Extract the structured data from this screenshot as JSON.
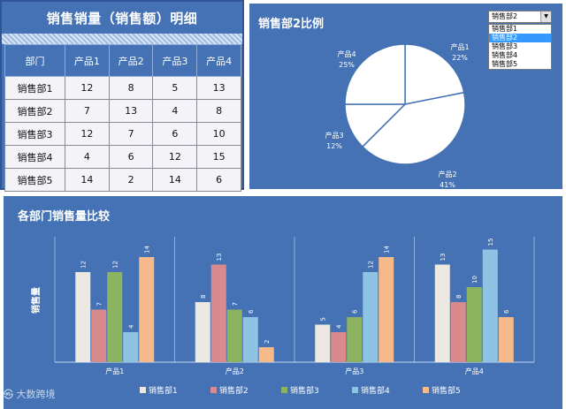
{
  "table": {
    "title": "销售销量（销售额）明细",
    "headers": [
      "部门",
      "产品1",
      "产品2",
      "产品3",
      "产品4"
    ],
    "rows": [
      [
        "销售部1",
        "12",
        "8",
        "5",
        "13"
      ],
      [
        "销售部2",
        "7",
        "13",
        "4",
        "8"
      ],
      [
        "销售部3",
        "12",
        "7",
        "6",
        "10"
      ],
      [
        "销售部4",
        "4",
        "6",
        "12",
        "15"
      ],
      [
        "销售部5",
        "14",
        "2",
        "14",
        "6"
      ]
    ]
  },
  "dropdown": {
    "selected": "销售部2",
    "options": [
      "销售部1",
      "销售部2",
      "销售部3",
      "销售部4",
      "销售部5"
    ],
    "highlighted_index": 1
  },
  "watermark": "大数跨境",
  "colors": {
    "panel": "#4472b4",
    "series": [
      "#ece9e2",
      "#d98a8d",
      "#8cb460",
      "#8fc3e3",
      "#f6b98a"
    ]
  },
  "chart_data": [
    {
      "type": "pie",
      "title": "销售部2比例",
      "slices": [
        {
          "label": "产品1",
          "value": 7,
          "percent": "22%"
        },
        {
          "label": "产品2",
          "value": 13,
          "percent": "41%"
        },
        {
          "label": "产品3",
          "value": 4,
          "percent": "12%"
        },
        {
          "label": "产品4",
          "value": 8,
          "percent": "25%"
        }
      ],
      "color": "#ffffff"
    },
    {
      "type": "bar",
      "title": "各部门销售量比较",
      "ylabel": "销售量",
      "categories": [
        "产品1",
        "产品2",
        "产品3",
        "产品4"
      ],
      "series": [
        {
          "name": "销售部1",
          "values": [
            12,
            8,
            5,
            13
          ]
        },
        {
          "name": "销售部2",
          "values": [
            7,
            13,
            4,
            8
          ]
        },
        {
          "name": "销售部3",
          "values": [
            12,
            7,
            6,
            10
          ]
        },
        {
          "name": "销售部4",
          "values": [
            4,
            6,
            12,
            15
          ]
        },
        {
          "name": "销售部5",
          "values": [
            14,
            2,
            14,
            6
          ]
        }
      ],
      "ylim": [
        0,
        16
      ],
      "legend": "bottom",
      "grid": false
    }
  ]
}
